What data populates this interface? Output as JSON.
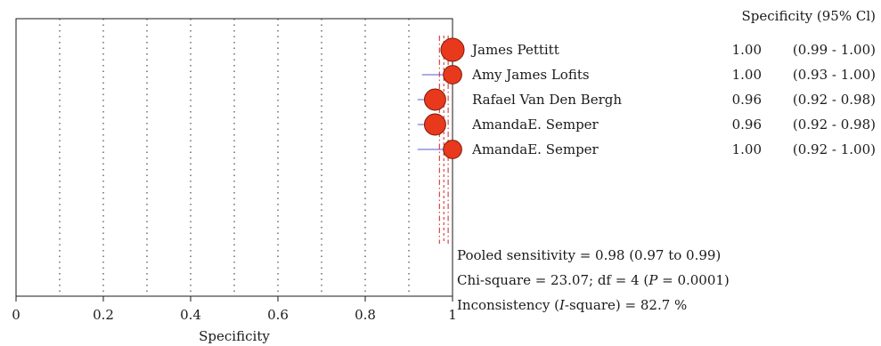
{
  "chart_data": {
    "type": "forest",
    "xlabel": "Specificity",
    "xlim": [
      0,
      1
    ],
    "xticks": [
      "0",
      "0.2",
      "0.4",
      "0.6",
      "0.8",
      "1"
    ],
    "grid_minor": [
      0.1,
      0.2,
      0.3,
      0.4,
      0.5,
      0.6,
      0.7,
      0.8,
      0.9
    ],
    "column_header": "Specificity (95% Cl)",
    "pooled": {
      "estimate": 0.98,
      "lower": 0.97,
      "upper": 0.99
    },
    "studies": [
      {
        "name": "James Pettitt",
        "estimate": 1.0,
        "lower": 0.99,
        "upper": 1.0,
        "est_text": "1.00",
        "ci_text": "(0.99 - 1.00)",
        "weight": 1.0
      },
      {
        "name": "Amy James Lofits",
        "estimate": 1.0,
        "lower": 0.93,
        "upper": 1.0,
        "est_text": "1.00",
        "ci_text": "(0.93 - 1.00)",
        "weight": 0.62
      },
      {
        "name": "Rafael Van Den Bergh",
        "estimate": 0.96,
        "lower": 0.92,
        "upper": 0.98,
        "est_text": "0.96",
        "ci_text": "(0.92 - 0.98)",
        "weight": 0.85
      },
      {
        "name": "AmandaE. Semper",
        "estimate": 0.96,
        "lower": 0.92,
        "upper": 0.98,
        "est_text": "0.96",
        "ci_text": "(0.92 - 0.98)",
        "weight": 0.85
      },
      {
        "name": "AmandaE. Semper",
        "estimate": 1.0,
        "lower": 0.92,
        "upper": 1.0,
        "est_text": "1.00",
        "ci_text": "(0.92 - 1.00)",
        "weight": 0.62
      }
    ],
    "colors": {
      "marker": "#e8391d",
      "marker_edge": "#7a1a0a",
      "ci_line": "#5a5ad6",
      "pooled_line": "#d42020",
      "axis": "#1a1a1a"
    }
  },
  "stats": {
    "pooled_line": "Pooled sensitivity = 0.98 (0.97 to 0.99)",
    "chi_prefix": "Chi-square = 23.07; df = 4 (",
    "chi_p": "P",
    "chi_suffix": " = 0.0001)",
    "incons_prefix": "Inconsistency (",
    "incons_i": "I",
    "incons_suffix": "-square) = 82.7 %"
  }
}
